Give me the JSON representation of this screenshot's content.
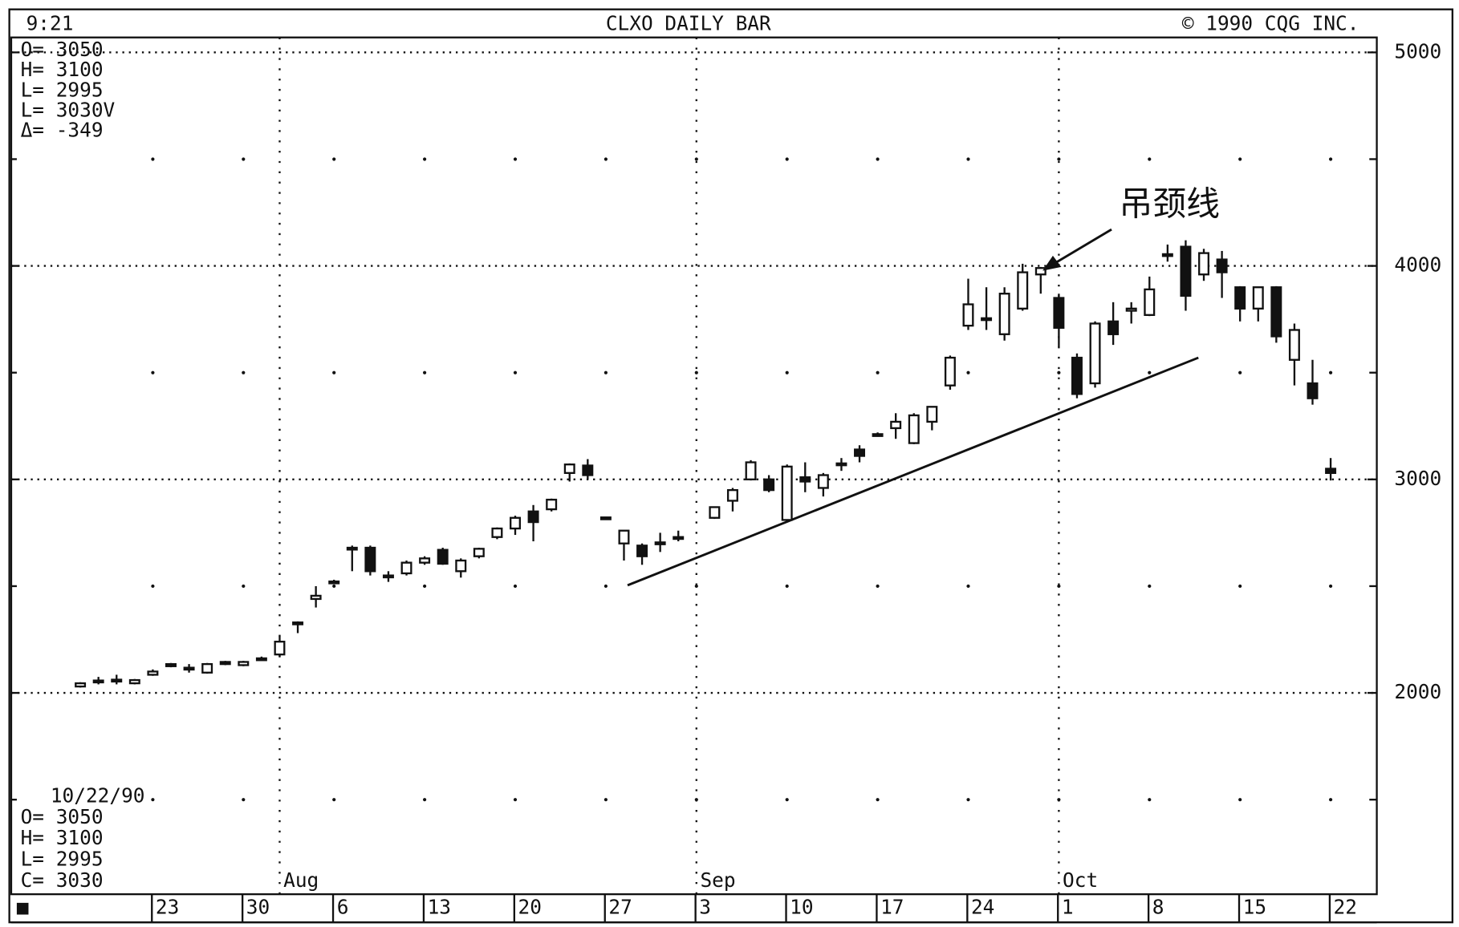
{
  "chart_data": {
    "type": "candlestick",
    "title": "CLXO DAILY BAR",
    "time": "9:21",
    "copyright": "©  1990 CQG INC.",
    "info_top": [
      "O= 3050",
      "H= 3100",
      "L= 2995",
      "L= 3030V",
      "Δ= -349"
    ],
    "info_bottom": [
      "10/22/90",
      "O=  3050",
      "H=  3100",
      "L=  2995",
      "C=  3030"
    ],
    "corner_mark": "■",
    "annotation": {
      "text": "吊颈线",
      "index": 53
    },
    "categories": [
      null,
      null,
      null,
      null,
      "23",
      null,
      null,
      null,
      null,
      "30",
      null,
      null,
      null,
      null,
      "6",
      null,
      null,
      null,
      null,
      "13",
      null,
      null,
      null,
      null,
      "20",
      null,
      null,
      null,
      null,
      "27",
      null,
      null,
      null,
      null,
      "3",
      null,
      null,
      null,
      null,
      "10",
      null,
      null,
      null,
      null,
      "17",
      null,
      null,
      null,
      null,
      "24",
      null,
      null,
      null,
      null,
      "1",
      null,
      null,
      null,
      null,
      "8",
      null,
      null,
      null,
      null,
      "15",
      null,
      null,
      null,
      null,
      "22"
    ],
    "months": [
      {
        "label": "Aug",
        "index": 11
      },
      {
        "label": "Sep",
        "index": 34
      },
      {
        "label": "Oct",
        "index": 54
      }
    ],
    "open": [
      2030,
      2055,
      2060,
      2045,
      2085,
      2135,
      2115,
      2095,
      2145,
      2130,
      2160,
      2180,
      2330,
      2440,
      2520,
      2680,
      2680,
      2545,
      2560,
      2610,
      2670,
      2570,
      2640,
      2730,
      2770,
      2850,
      2860,
      3030,
      3065,
      2820,
      2700,
      2690,
      2700,
      2730,
      null,
      2820,
      2900,
      3000,
      3000,
      2810,
      3010,
      2960,
      3070,
      3140,
      3210,
      3240,
      3170,
      3270,
      3440,
      3720,
      3750,
      3680,
      3800,
      3960,
      3850,
      3570,
      3450,
      3740,
      3790,
      3770,
      4050,
      4090,
      3960,
      4030,
      3900,
      3800,
      3900,
      3560,
      3450,
      3050
    ],
    "high": [
      2050,
      2075,
      2085,
      2065,
      2110,
      2140,
      2135,
      2140,
      2150,
      2150,
      2170,
      2265,
      2335,
      2500,
      2530,
      2690,
      2690,
      2570,
      2620,
      2640,
      2680,
      2630,
      2680,
      2775,
      2830,
      2880,
      2910,
      3075,
      3095,
      2825,
      2760,
      2700,
      2750,
      2760,
      null,
      2870,
      2960,
      3090,
      3020,
      3070,
      3080,
      3030,
      3100,
      3160,
      3220,
      3310,
      3310,
      3340,
      3580,
      3940,
      3900,
      3900,
      4010,
      3995,
      3870,
      3590,
      3740,
      3830,
      3830,
      3950,
      4100,
      4120,
      4080,
      4070,
      3905,
      3900,
      3905,
      3730,
      3560,
      3100
    ],
    "low": [
      2025,
      2040,
      2040,
      2040,
      2080,
      2120,
      2095,
      2090,
      2130,
      2125,
      2155,
      2170,
      2280,
      2400,
      2510,
      2570,
      2550,
      2520,
      2550,
      2600,
      2600,
      2540,
      2630,
      2720,
      2740,
      2710,
      2850,
      2990,
      3000,
      2815,
      2620,
      2600,
      2660,
      2710,
      null,
      2815,
      2850,
      2995,
      2940,
      2800,
      2940,
      2920,
      3040,
      3080,
      3200,
      3190,
      3165,
      3230,
      3420,
      3700,
      3700,
      3650,
      3790,
      3870,
      3620,
      3380,
      3430,
      3630,
      3730,
      3765,
      4020,
      3790,
      3930,
      3850,
      3740,
      3740,
      3640,
      3440,
      3350,
      2995
    ],
    "close": [
      2045,
      2058,
      2062,
      2060,
      2100,
      2125,
      2118,
      2135,
      2135,
      2145,
      2162,
      2240,
      2325,
      2455,
      2522,
      2675,
      2570,
      2550,
      2610,
      2630,
      2605,
      2620,
      2675,
      2770,
      2820,
      2800,
      2905,
      3070,
      3020,
      2822,
      2760,
      2640,
      2705,
      2728,
      null,
      2870,
      2950,
      3080,
      2950,
      3060,
      2990,
      3020,
      3075,
      3110,
      3212,
      3270,
      3300,
      3340,
      3570,
      3820,
      3755,
      3870,
      3970,
      3990,
      3710,
      3400,
      3730,
      3680,
      3800,
      3890,
      4055,
      3860,
      4060,
      3970,
      3800,
      3900,
      3670,
      3700,
      3380,
      3030
    ],
    "up_color": "#ffffff",
    "down_color": "#111111",
    "trendline": {
      "x": [
        30.2,
        61.7
      ],
      "y": [
        2504,
        3570
      ]
    },
    "ylim": [
      1057,
      5070
    ],
    "yticks": [
      2000,
      3000,
      4000,
      5000
    ],
    "minor_yticks": [
      1500,
      2500,
      3500,
      4500
    ],
    "grid": true
  }
}
